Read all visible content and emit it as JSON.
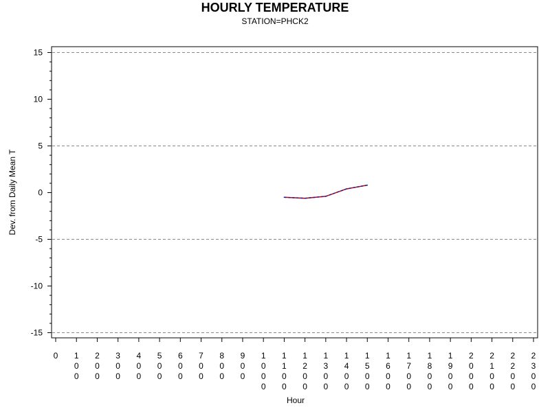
{
  "chart_data": {
    "type": "line",
    "title": "HOURLY TEMPERATURE",
    "subtitle": "STATION=PHCK2",
    "xlabel": "Hour",
    "ylabel": "Dev. from Daily Mean T",
    "xlim": [
      0,
      2300
    ],
    "ylim": [
      -15,
      15
    ],
    "x_ticks": [
      "0",
      "100",
      "200",
      "300",
      "400",
      "500",
      "600",
      "700",
      "800",
      "900",
      "1000",
      "1100",
      "1200",
      "1300",
      "1400",
      "1500",
      "1600",
      "1700",
      "1800",
      "1900",
      "2000",
      "2100",
      "2200",
      "2300"
    ],
    "y_ticks": [
      15,
      10,
      5,
      0,
      -5,
      -10,
      -15
    ],
    "reference_lines": [
      15,
      5,
      -5,
      -15
    ],
    "grid": false,
    "series": [
      {
        "x": [
          1100,
          1200,
          1300,
          1400,
          1500
        ],
        "y": [
          -0.5,
          -0.6,
          -0.4,
          0.4,
          0.8
        ]
      }
    ],
    "colors": {
      "line_red": "#cc0000",
      "line_blue": "#1a1aa0",
      "reference": "#888888",
      "axis": "#000000"
    }
  }
}
